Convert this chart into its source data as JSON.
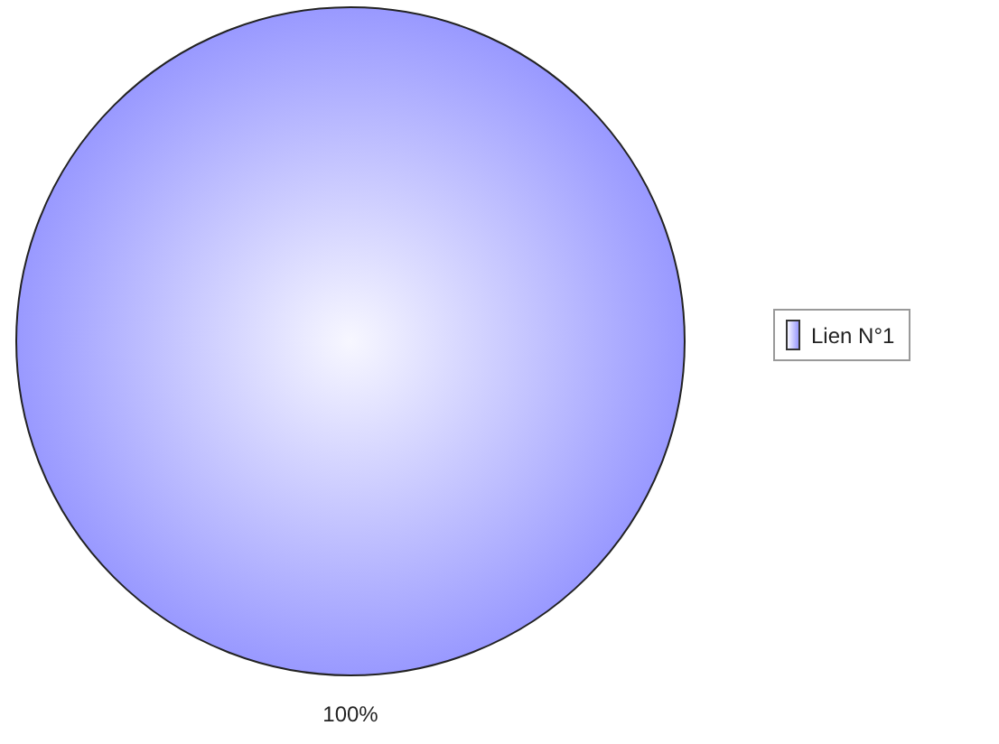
{
  "chart_data": {
    "type": "pie",
    "categories": [
      "Lien N°1"
    ],
    "values": [
      100
    ],
    "colors": [
      "#9999ff"
    ],
    "legend": "right",
    "value_labels": [
      "100%"
    ]
  }
}
